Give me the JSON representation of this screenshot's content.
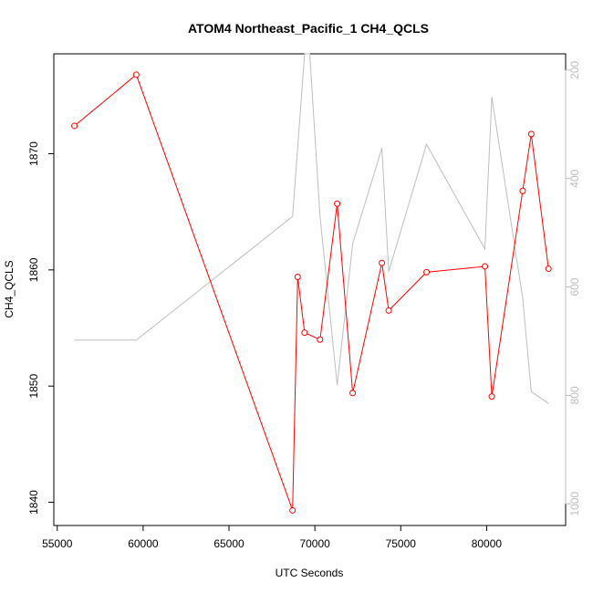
{
  "chart_data": {
    "type": "line",
    "title": "ATOM4 Northeast_Pacific_1 CH4_QCLS",
    "xlabel": "UTC Seconds",
    "ylabel": "CH4_QCLS",
    "xlim": [
      54800,
      84600
    ],
    "ylim": [
      1838.0,
      1878.6
    ],
    "y2lim": [
      1040,
      170
    ],
    "y2_reversed": true,
    "x_ticks": [
      55000,
      60000,
      65000,
      70000,
      75000,
      80000
    ],
    "y_ticks": [
      1840,
      1850,
      1860,
      1870
    ],
    "y2_ticks": [
      200,
      400,
      600,
      800,
      1000
    ],
    "grid": false,
    "series": [
      {
        "color": "#ff0000",
        "marker": "open-circle",
        "axis": "left",
        "x": [
          56000,
          59600,
          68700,
          69000,
          69400,
          70300,
          71300,
          72200,
          73900,
          74300,
          76500,
          79900,
          80300,
          82100,
          82600,
          83600
        ],
        "y": [
          1872.4,
          1876.8,
          1839.3,
          1859.4,
          1854.6,
          1854.0,
          1865.7,
          1849.4,
          1860.6,
          1856.5,
          1859.8,
          1860.3,
          1849.1,
          1866.8,
          1871.7,
          1860.1
        ]
      },
      {
        "color": "#bebebe",
        "marker": "none",
        "axis": "right",
        "x": [
          56000,
          59600,
          68700,
          69400,
          69700,
          70300,
          71300,
          72200,
          73900,
          74300,
          76500,
          79900,
          80300,
          82100,
          82600,
          83600
        ],
        "y": [
          698,
          698,
          470,
          170,
          170,
          470,
          781,
          520,
          344,
          572,
          337,
          530,
          250,
          620,
          793,
          815
        ]
      }
    ]
  }
}
